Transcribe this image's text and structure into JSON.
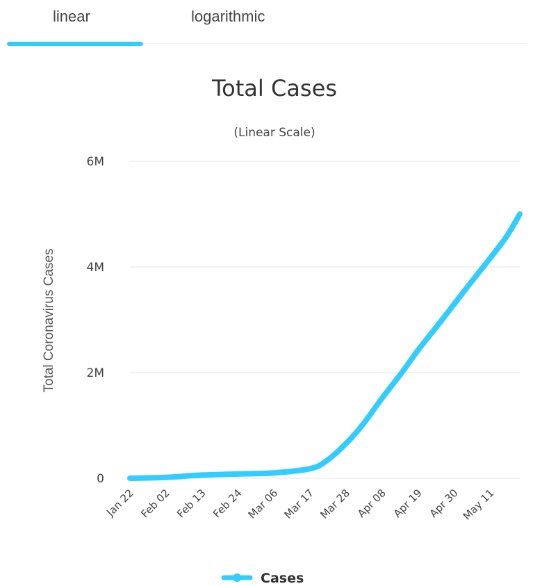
{
  "tabs": [
    {
      "label": "linear",
      "selected": true
    },
    {
      "label": "logarithmic",
      "selected": false
    }
  ],
  "colors": {
    "accent": "#33ccff",
    "series": "#33ccff"
  },
  "chart_data": {
    "type": "line",
    "title": "Total Cases",
    "subtitle": "(Linear Scale)",
    "ylabel": "Total Coronavirus Cases",
    "xlabel": "",
    "ylim": [
      0,
      6000000
    ],
    "yticks": [
      {
        "value": 0,
        "label": "0"
      },
      {
        "value": 2000000,
        "label": "2M"
      },
      {
        "value": 4000000,
        "label": "4M"
      },
      {
        "value": 6000000,
        "label": "6M"
      }
    ],
    "xticks": [
      "Jan 22",
      "Feb 02",
      "Feb 13",
      "Feb 24",
      "Mar 06",
      "Mar 17",
      "Mar 28",
      "Apr 08",
      "Apr 19",
      "Apr 30",
      "May 11"
    ],
    "grid": true,
    "legend": {
      "position": "bottom-center"
    },
    "series": [
      {
        "name": "Cases",
        "x": [
          "Jan 22",
          "Feb 02",
          "Feb 13",
          "Feb 24",
          "Mar 06",
          "Mar 17",
          "Mar 22",
          "Mar 28",
          "Apr 02",
          "Apr 08",
          "Apr 14",
          "Apr 19",
          "Apr 25",
          "Apr 30",
          "May 05",
          "May 11",
          "May 16",
          "May 20"
        ],
        "values": [
          555,
          17000,
          60000,
          80000,
          102000,
          182000,
          330000,
          660000,
          1010000,
          1520000,
          2000000,
          2430000,
          2900000,
          3300000,
          3700000,
          4170000,
          4580000,
          5000000
        ]
      }
    ]
  }
}
